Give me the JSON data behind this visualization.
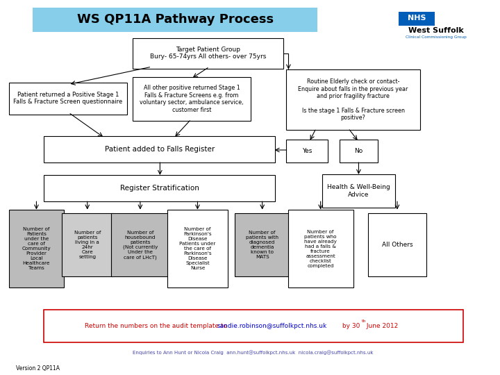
{
  "title": "WS QP11A Pathway Process",
  "title_bg": "#87CEEB",
  "bg_color": "#FFFFFF",
  "nhs_text": "NHS",
  "org_name": "West Suffolk",
  "org_sub": "Clinical Commissioning Group",
  "audit_text_left": "Return the numbers on the audit template to ",
  "audit_email": "sandie.robinson@suffolkpct.nhs.uk",
  "audit_text_mid": " by 30",
  "audit_text_sup": "th",
  "audit_text_right": " June 2012",
  "audit_color": "#CC0000",
  "audit_email_color": "#0000CC",
  "enquiries_pre": "Enquiries to Ann Hunt or Nicola Craig  ",
  "enquiries_email1": "ann.hunt@suffolkpct.nhs.uk",
  "enquiries_between": "  ",
  "enquiries_email2": "nicola.craig@suffolkpct.nhs.uk",
  "enquiries_color": "#4444AA",
  "version_text": "Version 2 QP11A"
}
